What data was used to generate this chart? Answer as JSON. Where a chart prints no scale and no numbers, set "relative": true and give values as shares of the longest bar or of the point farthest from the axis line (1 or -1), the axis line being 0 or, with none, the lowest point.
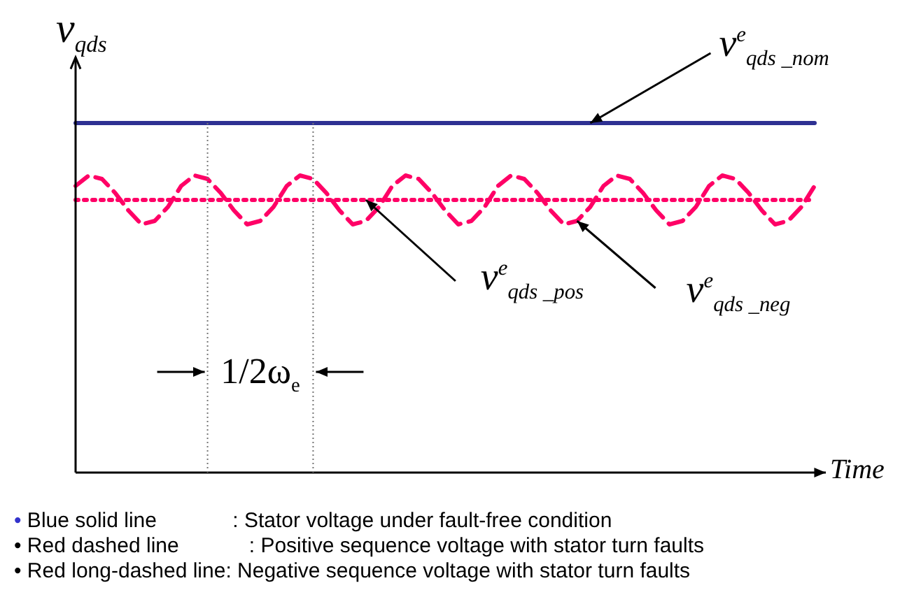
{
  "chart_data": {
    "type": "line",
    "relative": true,
    "ylabel": "v$_{qds}$",
    "xlabel": "Time",
    "legend": false,
    "categories": [
      null,
      null,
      null,
      null,
      null,
      null,
      null,
      null,
      null,
      null,
      null,
      null,
      null,
      null,
      null,
      null,
      null,
      null,
      null,
      null,
      null,
      null,
      null,
      null,
      null,
      null,
      null,
      null,
      null,
      null,
      null,
      null,
      null,
      null,
      null,
      null,
      null,
      null,
      null,
      null,
      null,
      null,
      null,
      null,
      null,
      null,
      null,
      null,
      null,
      null,
      null,
      null,
      null,
      null,
      null,
      null,
      null
    ],
    "series": [
      {
        "name": "v$^{e}$$_{qds _nom}$",
        "color": "#2e3192",
        "line_style": "solid",
        "values": [
          1,
          1,
          1,
          1,
          1,
          1,
          1,
          1,
          1,
          1,
          1,
          1,
          1,
          1,
          1,
          1,
          1,
          1,
          1,
          1,
          1,
          1,
          1,
          1,
          1,
          1,
          1,
          1,
          1,
          1,
          1,
          1,
          1,
          1,
          1,
          1,
          1,
          1,
          1,
          1,
          1,
          1,
          1,
          1,
          1,
          1,
          1,
          1,
          1,
          1,
          1,
          1,
          1,
          1,
          1,
          1,
          1
        ]
      },
      {
        "name": "v$^{e}$$_{qds _pos}$",
        "color": "#ff0066",
        "line_style": "dotted",
        "values": [
          0.78,
          0.78,
          0.78,
          0.78,
          0.78,
          0.78,
          0.78,
          0.78,
          0.78,
          0.78,
          0.78,
          0.78,
          0.78,
          0.78,
          0.78,
          0.78,
          0.78,
          0.78,
          0.78,
          0.78,
          0.78,
          0.78,
          0.78,
          0.78,
          0.78,
          0.78,
          0.78,
          0.78,
          0.78,
          0.78,
          0.78,
          0.78,
          0.78,
          0.78,
          0.78,
          0.78,
          0.78,
          0.78,
          0.78,
          0.78,
          0.78,
          0.78,
          0.78,
          0.78,
          0.78,
          0.78,
          0.78,
          0.78,
          0.78,
          0.78,
          0.78,
          0.78,
          0.78,
          0.78,
          0.78,
          0.78,
          0.78
        ]
      },
      {
        "name": "v$^{e}$$_{qds _neg}$",
        "color": "#ff0066",
        "line_style": "dashed",
        "values": [
          0.82,
          0.85,
          0.84,
          0.8,
          0.75,
          0.71,
          0.72,
          0.76,
          0.82,
          0.85,
          0.84,
          0.8,
          0.75,
          0.71,
          0.72,
          0.76,
          0.82,
          0.85,
          0.84,
          0.8,
          0.75,
          0.71,
          0.72,
          0.76,
          0.82,
          0.85,
          0.84,
          0.8,
          0.75,
          0.71,
          0.72,
          0.76,
          0.82,
          0.85,
          0.84,
          0.8,
          0.75,
          0.71,
          0.72,
          0.76,
          0.82,
          0.85,
          0.84,
          0.8,
          0.75,
          0.71,
          0.72,
          0.76,
          0.82,
          0.85,
          0.84,
          0.8,
          0.75,
          0.71,
          0.72,
          0.76,
          0.82
        ]
      }
    ],
    "annotations": [
      "1/2ω$_{e}$",
      "• Blue solid line             : Stator voltage under fault-free condition",
      "• Red dashed line            : Positive sequence voltage with stator turn faults",
      "• Red long-dashed line: Negative sequence voltage with stator turn faults"
    ]
  }
}
